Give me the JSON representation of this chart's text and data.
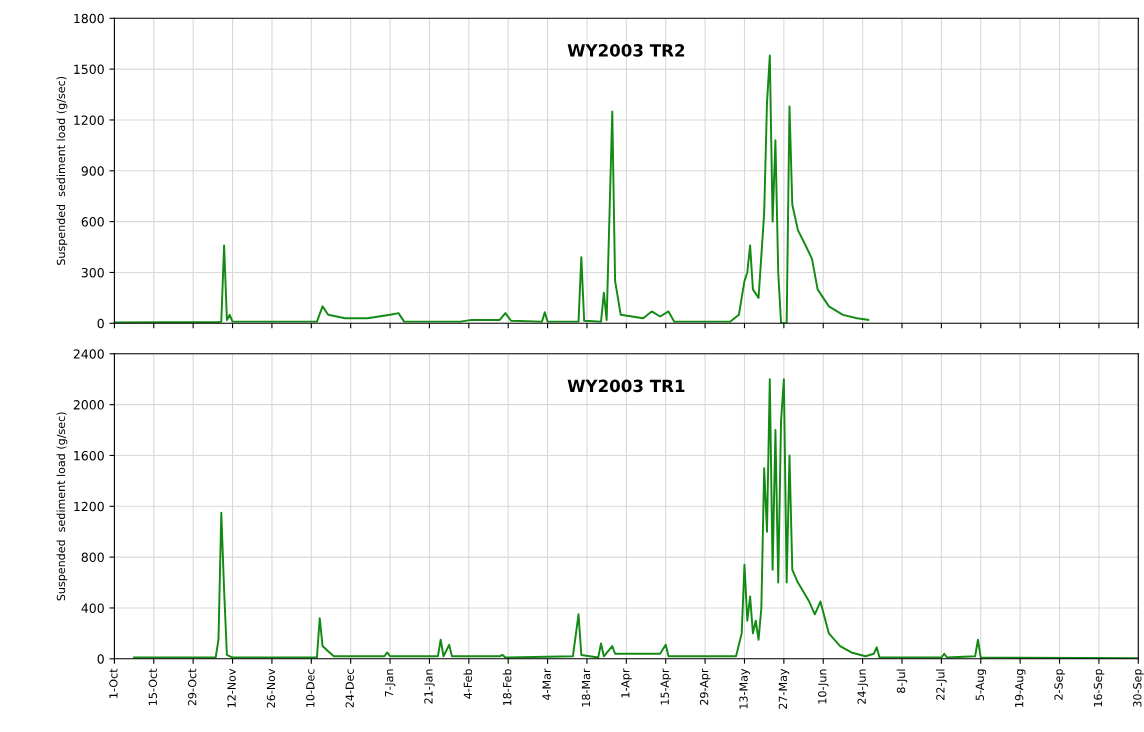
{
  "chart_data": [
    {
      "type": "line",
      "title": "WY2003 TR2",
      "ylabel": "Suspended  sediment load (g/sec)",
      "tick_labels": "y",
      "grid": true,
      "xlim": [
        "2002-10-01",
        "2003-09-30"
      ],
      "xticks": [
        {
          "value": "2002-10-01",
          "label": null
        },
        {
          "value": "2002-10-15",
          "label": null
        },
        {
          "value": "2002-10-29",
          "label": null
        },
        {
          "value": "2002-11-12",
          "label": null
        },
        {
          "value": "2002-11-26",
          "label": null
        },
        {
          "value": "2002-12-10",
          "label": null
        },
        {
          "value": "2002-12-24",
          "label": null
        },
        {
          "value": "2003-01-07",
          "label": null
        },
        {
          "value": "2003-01-21",
          "label": null
        },
        {
          "value": "2003-02-04",
          "label": null
        },
        {
          "value": "2003-02-18",
          "label": null
        },
        {
          "value": "2003-03-04",
          "label": null
        },
        {
          "value": "2003-03-18",
          "label": null
        },
        {
          "value": "2003-04-01",
          "label": null
        },
        {
          "value": "2003-04-15",
          "label": null
        },
        {
          "value": "2003-04-29",
          "label": null
        },
        {
          "value": "2003-05-13",
          "label": null
        },
        {
          "value": "2003-05-27",
          "label": null
        },
        {
          "value": "2003-06-10",
          "label": null
        },
        {
          "value": "2003-06-24",
          "label": null
        },
        {
          "value": "2003-07-08",
          "label": null
        },
        {
          "value": "2003-07-22",
          "label": null
        },
        {
          "value": "2003-08-05",
          "label": null
        },
        {
          "value": "2003-08-19",
          "label": null
        },
        {
          "value": "2003-09-02",
          "label": null
        },
        {
          "value": "2003-09-16",
          "label": null
        },
        {
          "value": "2003-09-30",
          "label": null
        }
      ],
      "ylim": [
        0,
        1800
      ],
      "yticks": [
        0,
        300,
        600,
        900,
        1200,
        1500,
        1800
      ],
      "x": [
        "2002-10-01",
        "2002-11-07",
        "2002-11-08",
        "2002-11-09",
        "2002-11-10",
        "2002-11-11",
        "2002-11-12",
        "2002-12-12",
        "2002-12-14",
        "2002-12-16",
        "2002-12-22",
        "2002-12-30",
        "2003-01-07",
        "2003-01-10",
        "2003-01-12",
        "2003-02-01",
        "2003-02-05",
        "2003-02-15",
        "2003-02-17",
        "2003-02-19",
        "2003-03-02",
        "2003-03-03",
        "2003-03-04",
        "2003-03-15",
        "2003-03-16",
        "2003-03-17",
        "2003-03-23",
        "2003-03-24",
        "2003-03-25",
        "2003-03-27",
        "2003-03-28",
        "2003-03-30",
        "2003-04-07",
        "2003-04-10",
        "2003-04-13",
        "2003-04-16",
        "2003-04-18",
        "2003-05-08",
        "2003-05-11",
        "2003-05-13",
        "2003-05-14",
        "2003-05-15",
        "2003-05-16",
        "2003-05-18",
        "2003-05-20",
        "2003-05-21",
        "2003-05-22",
        "2003-05-23",
        "2003-05-24",
        "2003-05-25",
        "2003-05-26",
        "2003-05-28",
        "2003-05-29",
        "2003-05-30",
        "2003-06-01",
        "2003-06-04",
        "2003-06-06",
        "2003-06-08",
        "2003-06-12",
        "2003-06-17",
        "2003-06-22",
        "2003-06-26"
      ],
      "series": [
        {
          "color": "#138a13",
          "values": [
            5,
            8,
            10,
            460,
            20,
            50,
            10,
            10,
            100,
            50,
            30,
            30,
            50,
            60,
            10,
            10,
            20,
            20,
            60,
            15,
            10,
            65,
            10,
            10,
            390,
            15,
            10,
            180,
            20,
            1250,
            250,
            50,
            30,
            70,
            40,
            70,
            10,
            10,
            50,
            250,
            300,
            460,
            200,
            150,
            650,
            1300,
            1580,
            600,
            1080,
            300,
            0,
            0,
            1280,
            700,
            550,
            450,
            380,
            200,
            100,
            50,
            30,
            20
          ]
        }
      ]
    },
    {
      "type": "line",
      "title": "WY2003 TR1",
      "ylabel": "Suspended  sediment load (g/sec)",
      "grid": true,
      "xlim": [
        "2002-10-01",
        "2003-09-30"
      ],
      "xticks": [
        {
          "value": "2002-10-01",
          "label": "1-Oct"
        },
        {
          "value": "2002-10-15",
          "label": "15-Oct"
        },
        {
          "value": "2002-10-29",
          "label": "29-Oct"
        },
        {
          "value": "2002-11-12",
          "label": "12-Nov"
        },
        {
          "value": "2002-11-26",
          "label": "26-Nov"
        },
        {
          "value": "2002-12-10",
          "label": "10-Dec"
        },
        {
          "value": "2002-12-24",
          "label": "24-Dec"
        },
        {
          "value": "2003-01-07",
          "label": "7-Jan"
        },
        {
          "value": "2003-01-21",
          "label": "21-Jan"
        },
        {
          "value": "2003-02-04",
          "label": "4-Feb"
        },
        {
          "value": "2003-02-18",
          "label": "18-Feb"
        },
        {
          "value": "2003-03-04",
          "label": "4-Mar"
        },
        {
          "value": "2003-03-18",
          "label": "18-Mar"
        },
        {
          "value": "2003-04-01",
          "label": "1-Apr"
        },
        {
          "value": "2003-04-15",
          "label": "15-Apr"
        },
        {
          "value": "2003-04-29",
          "label": "29-Apr"
        },
        {
          "value": "2003-05-13",
          "label": "13-May"
        },
        {
          "value": "2003-05-27",
          "label": "27-May"
        },
        {
          "value": "2003-06-10",
          "label": "10-Jun"
        },
        {
          "value": "2003-06-24",
          "label": "24-Jun"
        },
        {
          "value": "2003-07-08",
          "label": "8-Jul"
        },
        {
          "value": "2003-07-22",
          "label": "22-Jul"
        },
        {
          "value": "2003-08-05",
          "label": "5-Aug"
        },
        {
          "value": "2003-08-19",
          "label": "19-Aug"
        },
        {
          "value": "2003-09-02",
          "label": "2-Sep"
        },
        {
          "value": "2003-09-16",
          "label": "16-Sep"
        },
        {
          "value": "2003-09-30",
          "label": "30-Sep"
        }
      ],
      "ylim": [
        0,
        2400
      ],
      "yticks": [
        0,
        400,
        800,
        1200,
        1600,
        2000,
        2400
      ],
      "x": [
        "2002-10-08",
        "2002-11-06",
        "2002-11-07",
        "2002-11-08",
        "2002-11-09",
        "2002-11-10",
        "2002-11-12",
        "2002-12-12",
        "2002-12-13",
        "2002-12-14",
        "2002-12-16",
        "2002-12-18",
        "2003-01-05",
        "2003-01-06",
        "2003-01-07",
        "2003-01-24",
        "2003-01-25",
        "2003-01-26",
        "2003-01-28",
        "2003-01-29",
        "2003-02-15",
        "2003-02-16",
        "2003-02-17",
        "2003-03-13",
        "2003-03-15",
        "2003-03-16",
        "2003-03-22",
        "2003-03-23",
        "2003-03-24",
        "2003-03-27",
        "2003-03-28",
        "2003-04-13",
        "2003-04-15",
        "2003-04-16",
        "2003-05-10",
        "2003-05-12",
        "2003-05-13",
        "2003-05-14",
        "2003-05-15",
        "2003-05-16",
        "2003-05-17",
        "2003-05-18",
        "2003-05-19",
        "2003-05-20",
        "2003-05-21",
        "2003-05-22",
        "2003-05-23",
        "2003-05-24",
        "2003-05-25",
        "2003-05-26",
        "2003-05-27",
        "2003-05-28",
        "2003-05-29",
        "2003-05-30",
        "2003-06-01",
        "2003-06-05",
        "2003-06-07",
        "2003-06-09",
        "2003-06-12",
        "2003-06-16",
        "2003-06-20",
        "2003-06-25",
        "2003-06-28",
        "2003-06-29",
        "2003-06-30",
        "2003-07-22",
        "2003-07-23",
        "2003-07-24",
        "2003-08-03",
        "2003-08-04",
        "2003-08-05",
        "2003-09-30"
      ],
      "series": [
        {
          "color": "#138a13",
          "values": [
            10,
            10,
            150,
            1150,
            540,
            30,
            10,
            10,
            320,
            100,
            60,
            20,
            20,
            50,
            20,
            20,
            150,
            20,
            110,
            20,
            20,
            30,
            10,
            20,
            350,
            30,
            10,
            120,
            20,
            100,
            40,
            40,
            110,
            20,
            20,
            200,
            740,
            300,
            490,
            200,
            300,
            150,
            400,
            1500,
            1000,
            2200,
            700,
            1800,
            600,
            1870,
            2200,
            600,
            1600,
            700,
            600,
            450,
            350,
            450,
            200,
            100,
            50,
            20,
            40,
            90,
            10,
            10,
            40,
            10,
            20,
            150,
            10,
            5
          ]
        }
      ]
    }
  ]
}
